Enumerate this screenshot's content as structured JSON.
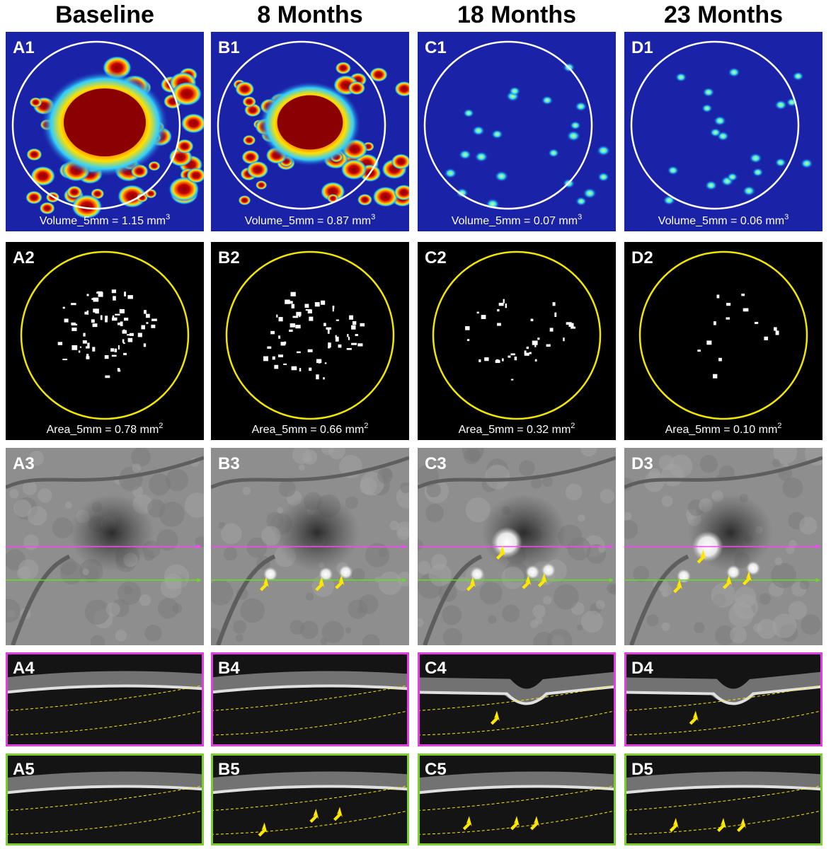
{
  "columns": [
    {
      "title": "Baseline",
      "panels": [
        {
          "label": "A1",
          "caption": {
            "text": "Volume_5mm = 1.15 mm",
            "sup": "3"
          }
        },
        {
          "label": "A2",
          "caption": {
            "text": "Area_5mm = 0.78 mm",
            "sup": "2"
          }
        },
        {
          "label": "A3"
        },
        {
          "label": "A4"
        },
        {
          "label": "A5"
        }
      ]
    },
    {
      "title": "8 Months",
      "panels": [
        {
          "label": "B1",
          "caption": {
            "text": "Volume_5mm = 0.87 mm",
            "sup": "3"
          }
        },
        {
          "label": "B2",
          "caption": {
            "text": "Area_5mm = 0.66 mm",
            "sup": "2"
          }
        },
        {
          "label": "B3"
        },
        {
          "label": "B4"
        },
        {
          "label": "B5"
        }
      ]
    },
    {
      "title": "18 Months",
      "panels": [
        {
          "label": "C1",
          "caption": {
            "text": "Volume_5mm = 0.07 mm",
            "sup": "3"
          }
        },
        {
          "label": "C2",
          "caption": {
            "text": "Area_5mm = 0.32 mm",
            "sup": "2"
          }
        },
        {
          "label": "C3"
        },
        {
          "label": "C4"
        },
        {
          "label": "C5"
        }
      ]
    },
    {
      "title": "23 Months",
      "panels": [
        {
          "label": "D1",
          "caption": {
            "text": "Volume_5mm = 0.06 mm",
            "sup": "3"
          }
        },
        {
          "label": "D2",
          "caption": {
            "text": "Area_5mm = 0.10 mm",
            "sup": "2"
          }
        },
        {
          "label": "D3"
        },
        {
          "label": "D4"
        },
        {
          "label": "D5"
        }
      ]
    }
  ]
}
